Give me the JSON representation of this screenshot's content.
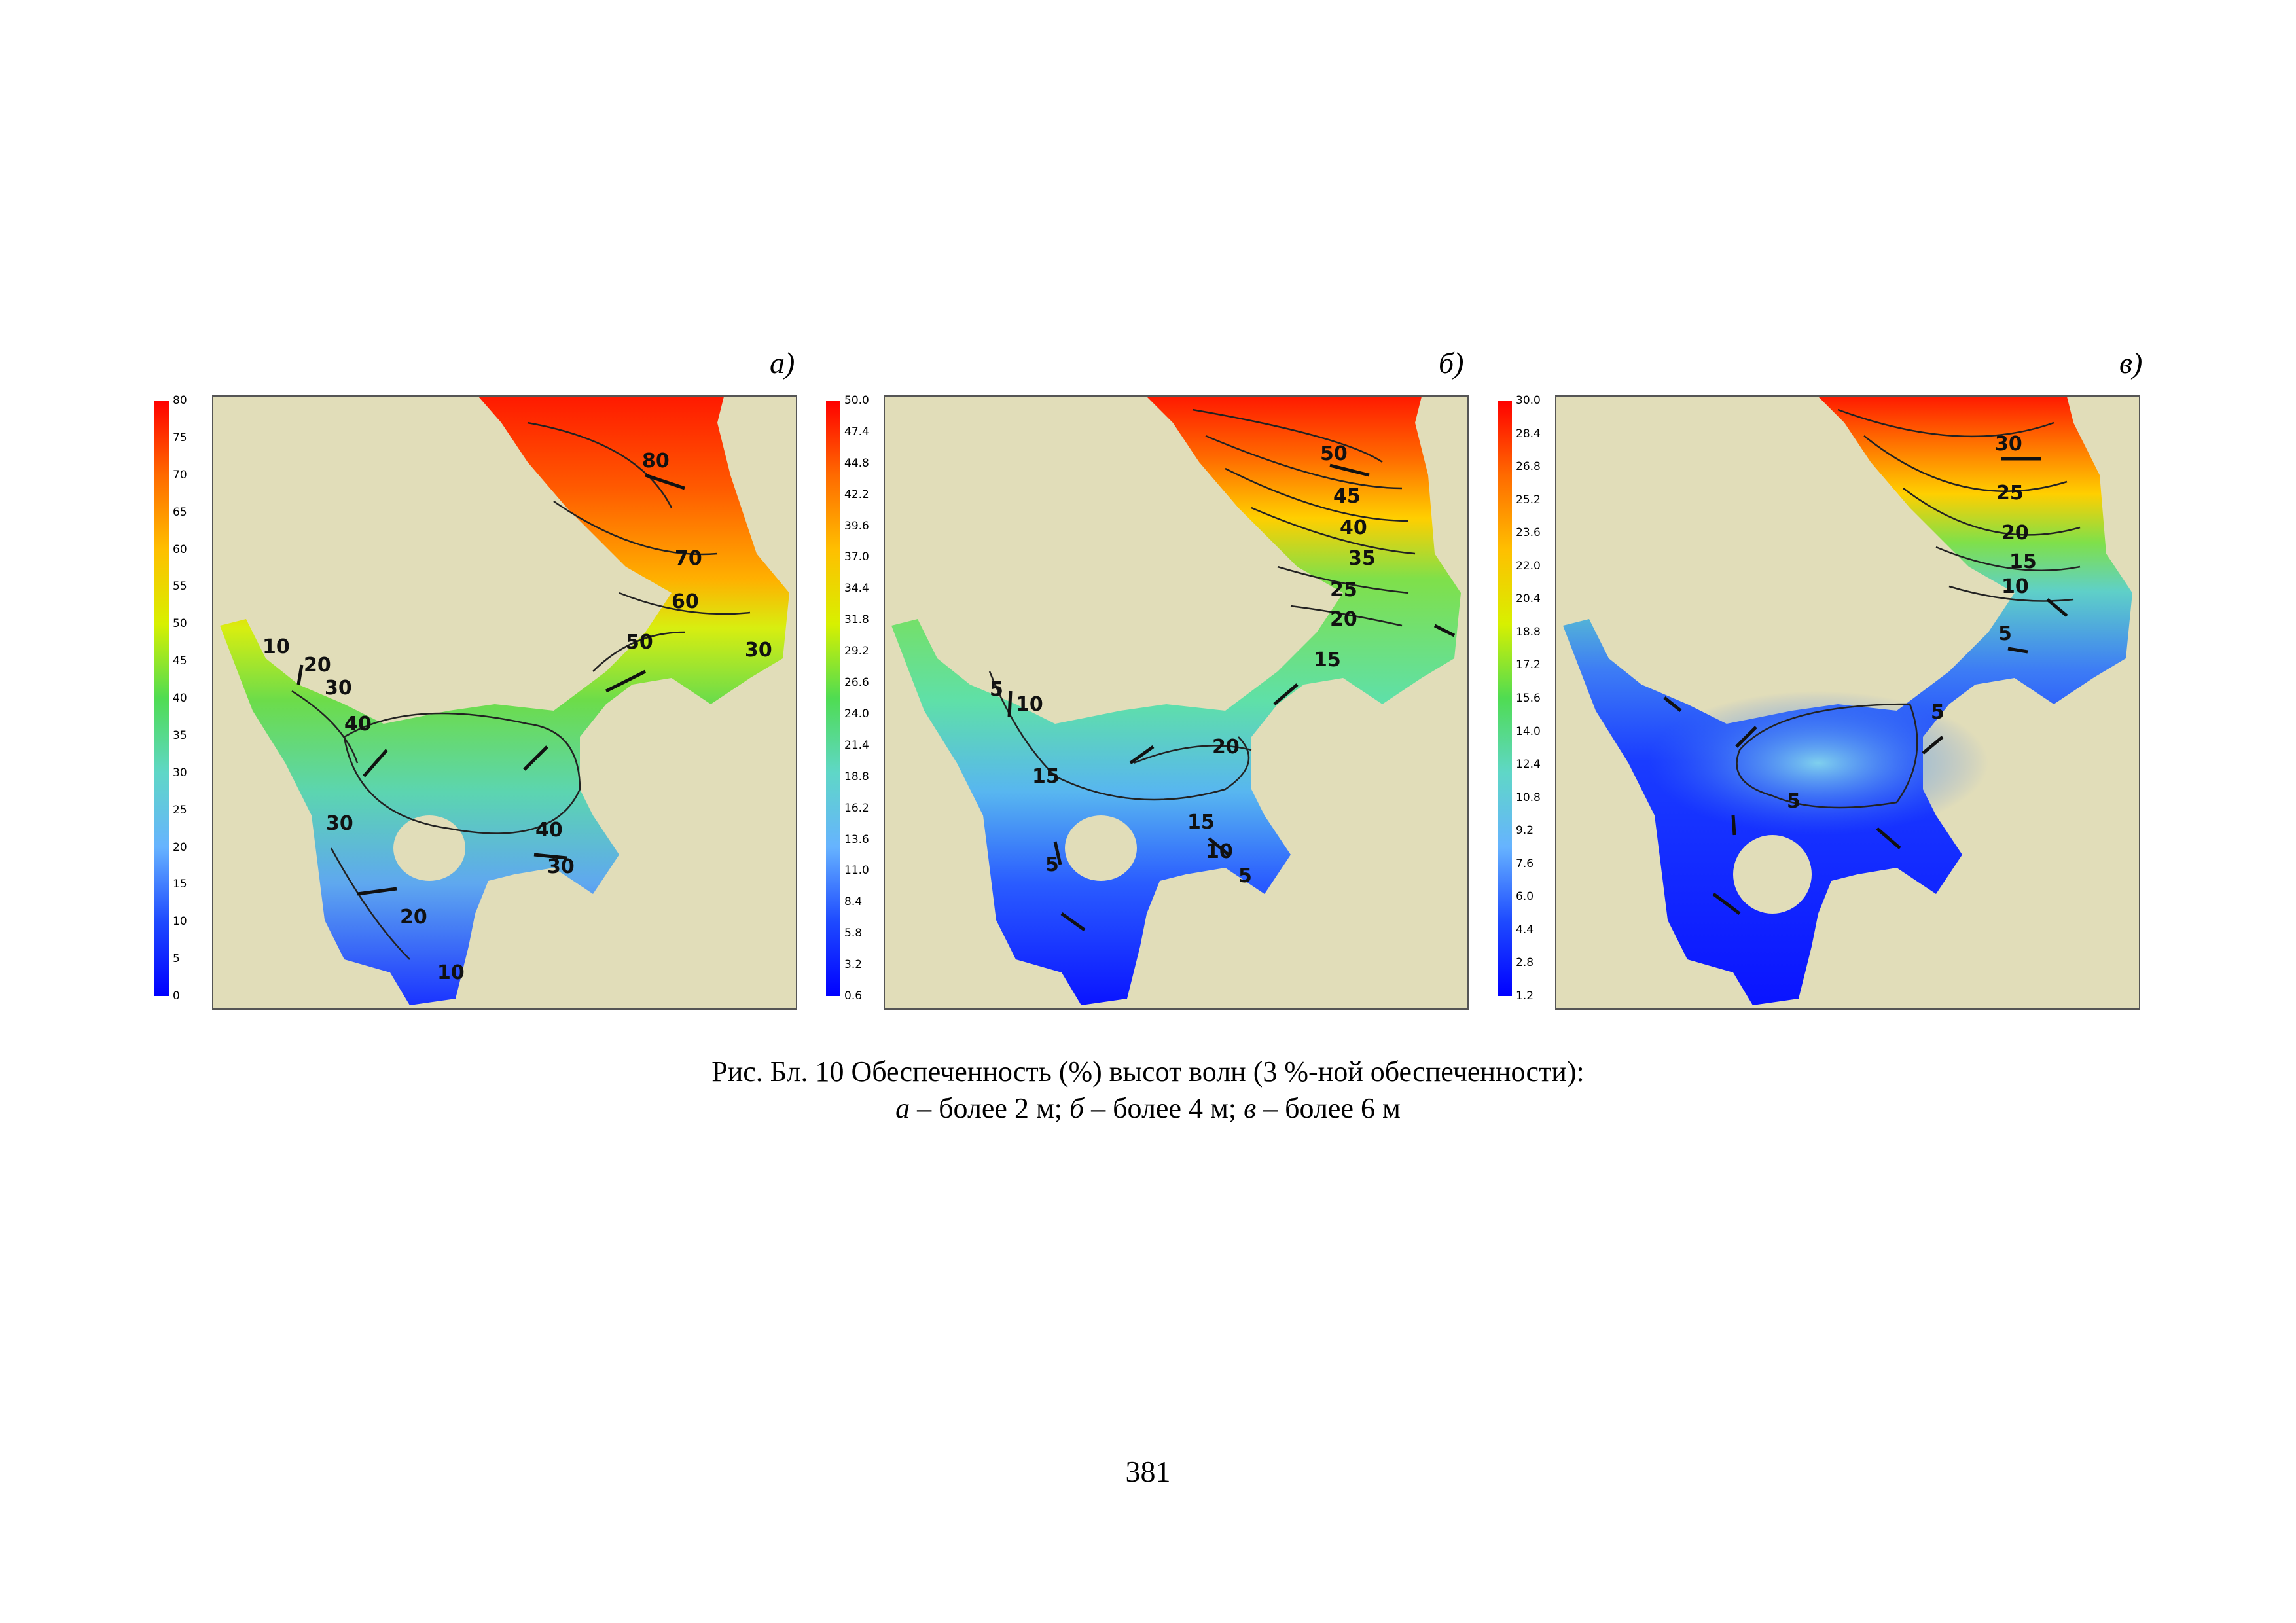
{
  "figure": {
    "panels": [
      {
        "id": "a",
        "label": "а)",
        "colorbar": {
          "ticks": [
            "80",
            "75",
            "70",
            "65",
            "60",
            "55",
            "50",
            "45",
            "40",
            "35",
            "30",
            "25",
            "20",
            "15",
            "10",
            "5",
            "0"
          ],
          "colors": [
            "#ff0000",
            "#ff6a00",
            "#ffbf00",
            "#d8f000",
            "#4fdc52",
            "#5fd7c7",
            "#66b3ff",
            "#1e4aff",
            "#0000ff"
          ]
        },
        "contour_labels": [
          "80",
          "70",
          "60",
          "50",
          "30",
          "10",
          "20",
          "30",
          "40",
          "30",
          "40",
          "30",
          "20",
          "10"
        ]
      },
      {
        "id": "b",
        "label": "б)",
        "colorbar": {
          "ticks": [
            "50.0",
            "47.4",
            "44.8",
            "42.2",
            "39.6",
            "37.0",
            "34.4",
            "31.8",
            "29.2",
            "26.6",
            "24.0",
            "21.4",
            "18.8",
            "16.2",
            "13.6",
            "11.0",
            "8.4",
            "5.8",
            "3.2",
            "0.6"
          ],
          "colors": [
            "#ff0000",
            "#ff6a00",
            "#ffbf00",
            "#d8f000",
            "#4fdc52",
            "#5fd7c7",
            "#66b3ff",
            "#1e4aff",
            "#0000ff"
          ]
        },
        "contour_labels": [
          "50",
          "45",
          "40",
          "35",
          "25",
          "20",
          "15",
          "5",
          "10",
          "20",
          "15",
          "15",
          "10",
          "5",
          "5"
        ]
      },
      {
        "id": "v",
        "label": "в)",
        "colorbar": {
          "ticks": [
            "30.0",
            "28.4",
            "26.8",
            "25.2",
            "23.6",
            "22.0",
            "20.4",
            "18.8",
            "17.2",
            "15.6",
            "14.0",
            "12.4",
            "10.8",
            "9.2",
            "7.6",
            "6.0",
            "4.4",
            "2.8",
            "1.2"
          ],
          "colors": [
            "#ff0000",
            "#ff6a00",
            "#ffbf00",
            "#d8f000",
            "#4fdc52",
            "#5fd7c7",
            "#66b3ff",
            "#1e4aff",
            "#0000ff"
          ]
        },
        "contour_labels": [
          "30",
          "25",
          "20",
          "15",
          "10",
          "5",
          "5",
          "5"
        ]
      }
    ],
    "colors": {
      "land": "#e1ddb9",
      "contour": "#222222",
      "arrow": "#111111"
    }
  },
  "caption": {
    "line1": "Рис. Бл. 10 Обеспеченность (%) высот волн (3 %-ной обеспеченности):",
    "line2_a": "а",
    "line2_a_text": " – более 2 м; ",
    "line2_b": "б",
    "line2_b_text": " – более 4 м; ",
    "line2_v": "в",
    "line2_v_text": " – более 6 м"
  },
  "page_number": "381"
}
